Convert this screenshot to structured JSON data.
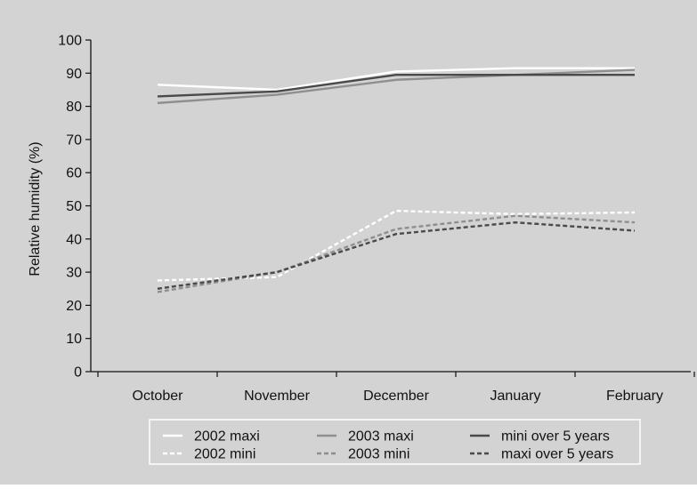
{
  "chart_data": {
    "type": "line",
    "title": "",
    "xlabel": "",
    "ylabel": "Relative humidity (%)",
    "ylim": [
      0,
      100
    ],
    "yticks": [
      0,
      10,
      20,
      30,
      40,
      50,
      60,
      70,
      80,
      90,
      100
    ],
    "categories": [
      "October",
      "November",
      "December",
      "January",
      "February"
    ],
    "grid": false,
    "legend_position": "bottom",
    "background_color": "#d3d3d3",
    "series": [
      {
        "name": "2002 maxi",
        "values": [
          86.5,
          85,
          90.5,
          91.5,
          91.5
        ],
        "color": "#ffffff",
        "dash": "solid"
      },
      {
        "name": "2002 mini",
        "values": [
          27.5,
          28.5,
          48.5,
          47.5,
          48
        ],
        "color": "#ffffff",
        "dash": "dashed"
      },
      {
        "name": "2003 maxi",
        "values": [
          81,
          83.5,
          88,
          89.5,
          91
        ],
        "color": "#8f8f8f",
        "dash": "solid"
      },
      {
        "name": "2003 mini",
        "values": [
          24,
          30,
          43,
          47,
          45
        ],
        "color": "#8f8f8f",
        "dash": "dashed"
      },
      {
        "name": "mini over 5 years",
        "values": [
          83,
          84.5,
          89.5,
          89.5,
          89.5
        ],
        "color": "#4a4a4a",
        "dash": "solid"
      },
      {
        "name": "maxi over 5 years",
        "values": [
          25,
          30,
          41.5,
          45,
          42.5
        ],
        "color": "#4a4a4a",
        "dash": "dashed"
      }
    ]
  }
}
